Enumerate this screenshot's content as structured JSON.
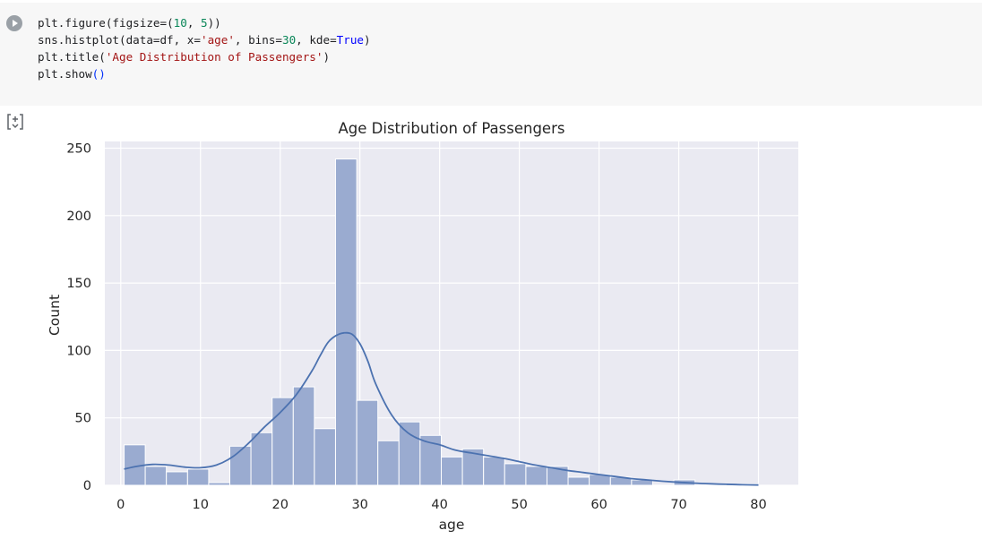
{
  "code_cell": {
    "lines": [
      [
        [
          "plt.figure(figsize=",
          ""
        ],
        [
          "(",
          ""
        ],
        [
          "10",
          "num"
        ],
        [
          ", ",
          ""
        ],
        [
          "5",
          "num"
        ],
        [
          "))",
          ""
        ]
      ],
      [
        [
          "sns.histplot(data=df, x=",
          ""
        ],
        [
          "'age'",
          "str"
        ],
        [
          ", bins=",
          ""
        ],
        [
          "30",
          "num"
        ],
        [
          ", kde=",
          ""
        ],
        [
          "True",
          "kw"
        ],
        [
          ")",
          ""
        ]
      ],
      [
        [
          "plt.title(",
          ""
        ],
        [
          "'Age Distribution of Passengers'",
          "str"
        ],
        [
          ")",
          ""
        ]
      ],
      [
        [
          "plt.show",
          ""
        ],
        [
          "()",
          "paren"
        ]
      ]
    ]
  },
  "icons": {
    "run": "play-circle-icon",
    "output": "output-toggle-icon"
  },
  "colors": {
    "bar": "#9aabd0",
    "kde": "#4c72b0",
    "plot_bg": "#eaeaf2",
    "grid": "#ffffff"
  },
  "chart_data": {
    "type": "bar",
    "title": "Age Distribution of Passengers",
    "xlabel": "age",
    "ylabel": "Count",
    "xlim": [
      -2,
      85
    ],
    "ylim": [
      0,
      255
    ],
    "xticks": [
      0,
      10,
      20,
      30,
      40,
      50,
      60,
      70,
      80
    ],
    "yticks": [
      0,
      50,
      100,
      150,
      200,
      250
    ],
    "grid": true,
    "bin_edges": [
      0.42,
      3.07,
      5.72,
      8.38,
      11.03,
      13.68,
      16.33,
      18.99,
      21.64,
      24.29,
      26.94,
      29.6,
      32.25,
      34.9,
      37.55,
      40.21,
      42.86,
      45.51,
      48.16,
      50.82,
      53.47,
      56.12,
      58.77,
      61.43,
      64.08,
      66.73,
      69.38,
      72.04,
      74.69,
      77.34,
      80.0
    ],
    "counts": [
      30,
      14,
      10,
      12,
      2,
      29,
      39,
      65,
      73,
      42,
      242,
      63,
      33,
      47,
      37,
      21,
      27,
      21,
      16,
      14,
      14,
      6,
      8,
      6,
      4,
      0,
      4,
      0,
      0,
      1
    ],
    "kde": {
      "x": [
        0.42,
        2,
        4,
        6,
        8,
        10,
        12,
        14,
        16,
        18,
        20,
        22,
        24,
        25,
        26,
        27,
        28,
        29,
        30,
        31,
        32,
        34,
        36,
        38,
        40,
        42,
        44,
        46,
        48,
        50,
        52,
        54,
        56,
        58,
        60,
        62,
        64,
        66,
        68,
        70,
        72,
        74,
        76,
        78,
        80
      ],
      "y": [
        12,
        14,
        15.5,
        15,
        13.5,
        13,
        15,
        21,
        31,
        43,
        54,
        67,
        85,
        96,
        106,
        111,
        113,
        112,
        105,
        92,
        75,
        52,
        39,
        33,
        30,
        26,
        24,
        22,
        20,
        17.5,
        15,
        13,
        11,
        9.5,
        8,
        6.5,
        5,
        4,
        3,
        2.2,
        1.6,
        1.1,
        0.7,
        0.4,
        0.2
      ]
    }
  }
}
